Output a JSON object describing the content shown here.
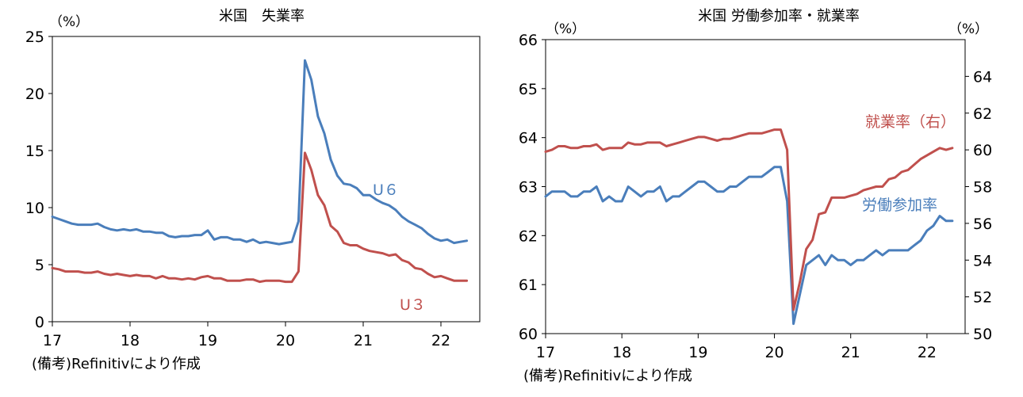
{
  "chart_data": [
    {
      "type": "line",
      "title": "米国　失業率",
      "unit_left": "（%）",
      "note": "(備考)Refinitivにより作成",
      "ylim": [
        0,
        25
      ],
      "yticks": [
        0,
        5,
        10,
        15,
        20,
        25
      ],
      "x_range": [
        17.0,
        22.5
      ],
      "xticks": [
        17,
        18,
        19,
        20,
        21,
        22
      ],
      "xtick_labels": [
        "17",
        "18",
        "19",
        "20",
        "21",
        "22"
      ],
      "series": [
        {
          "name": "U６",
          "label": "U６",
          "color": "#4a7ebb",
          "x": [
            17.0,
            17.083,
            17.167,
            17.25,
            17.333,
            17.417,
            17.5,
            17.583,
            17.667,
            17.75,
            17.833,
            17.917,
            18.0,
            18.083,
            18.167,
            18.25,
            18.333,
            18.417,
            18.5,
            18.583,
            18.667,
            18.75,
            18.833,
            18.917,
            19.0,
            19.083,
            19.167,
            19.25,
            19.333,
            19.417,
            19.5,
            19.583,
            19.667,
            19.75,
            19.833,
            19.917,
            20.0,
            20.083,
            20.167,
            20.25,
            20.333,
            20.417,
            20.5,
            20.583,
            20.667,
            20.75,
            20.833,
            20.917,
            21.0,
            21.083,
            21.167,
            21.25,
            21.333,
            21.417,
            21.5,
            21.583,
            21.667,
            21.75,
            21.833,
            21.917,
            22.0,
            22.083,
            22.167,
            22.25,
            22.333
          ],
          "values": [
            9.2,
            9.0,
            8.8,
            8.6,
            8.5,
            8.5,
            8.5,
            8.6,
            8.3,
            8.1,
            8.0,
            8.1,
            8.0,
            8.1,
            7.9,
            7.9,
            7.8,
            7.8,
            7.5,
            7.4,
            7.5,
            7.5,
            7.6,
            7.6,
            8.0,
            7.2,
            7.4,
            7.4,
            7.2,
            7.2,
            7.0,
            7.2,
            6.9,
            7.0,
            6.9,
            6.8,
            6.9,
            7.0,
            8.8,
            22.9,
            21.2,
            18.0,
            16.5,
            14.2,
            12.8,
            12.1,
            12.0,
            11.7,
            11.1,
            11.1,
            10.7,
            10.4,
            10.2,
            9.8,
            9.2,
            8.8,
            8.5,
            8.2,
            7.7,
            7.3,
            7.1,
            7.2,
            6.9,
            7.0,
            7.1
          ]
        },
        {
          "name": "U３",
          "label": "U３",
          "color": "#c0504d",
          "x": [
            17.0,
            17.083,
            17.167,
            17.25,
            17.333,
            17.417,
            17.5,
            17.583,
            17.667,
            17.75,
            17.833,
            17.917,
            18.0,
            18.083,
            18.167,
            18.25,
            18.333,
            18.417,
            18.5,
            18.583,
            18.667,
            18.75,
            18.833,
            18.917,
            19.0,
            19.083,
            19.167,
            19.25,
            19.333,
            19.417,
            19.5,
            19.583,
            19.667,
            19.75,
            19.833,
            19.917,
            20.0,
            20.083,
            20.167,
            20.25,
            20.333,
            20.417,
            20.5,
            20.583,
            20.667,
            20.75,
            20.833,
            20.917,
            21.0,
            21.083,
            21.167,
            21.25,
            21.333,
            21.417,
            21.5,
            21.583,
            21.667,
            21.75,
            21.833,
            21.917,
            22.0,
            22.083,
            22.167,
            22.25,
            22.333
          ],
          "values": [
            4.7,
            4.6,
            4.4,
            4.4,
            4.4,
            4.3,
            4.3,
            4.4,
            4.2,
            4.1,
            4.2,
            4.1,
            4.0,
            4.1,
            4.0,
            4.0,
            3.8,
            4.0,
            3.8,
            3.8,
            3.7,
            3.8,
            3.7,
            3.9,
            4.0,
            3.8,
            3.8,
            3.6,
            3.6,
            3.6,
            3.7,
            3.7,
            3.5,
            3.6,
            3.6,
            3.6,
            3.5,
            3.5,
            4.4,
            14.8,
            13.3,
            11.1,
            10.2,
            8.4,
            7.9,
            6.9,
            6.7,
            6.7,
            6.4,
            6.2,
            6.1,
            6.0,
            5.8,
            5.9,
            5.4,
            5.2,
            4.7,
            4.6,
            4.2,
            3.9,
            4.0,
            3.8,
            3.6,
            3.6,
            3.6
          ]
        }
      ]
    },
    {
      "type": "line",
      "title": "米国 労働参加率・就業率",
      "unit_left": "（%）",
      "unit_right": "（%）",
      "note": "(備考)Refinitivにより作成",
      "ylim": [
        60,
        66
      ],
      "yticks": [
        60,
        61,
        62,
        63,
        64,
        65,
        66
      ],
      "ylim_right": [
        50,
        66
      ],
      "yticks_right": [
        50,
        52,
        54,
        56,
        58,
        60,
        62,
        64
      ],
      "x_range": [
        17.0,
        22.5
      ],
      "xticks": [
        17,
        18,
        19,
        20,
        21,
        22
      ],
      "xtick_labels": [
        "17",
        "18",
        "19",
        "20",
        "21",
        "22"
      ],
      "series": [
        {
          "name": "労働参加率",
          "label": "労働参加率",
          "axis": "left",
          "color": "#4a7ebb",
          "x": [
            17.0,
            17.083,
            17.167,
            17.25,
            17.333,
            17.417,
            17.5,
            17.583,
            17.667,
            17.75,
            17.833,
            17.917,
            18.0,
            18.083,
            18.167,
            18.25,
            18.333,
            18.417,
            18.5,
            18.583,
            18.667,
            18.75,
            18.833,
            18.917,
            19.0,
            19.083,
            19.167,
            19.25,
            19.333,
            19.417,
            19.5,
            19.583,
            19.667,
            19.75,
            19.833,
            19.917,
            20.0,
            20.083,
            20.167,
            20.25,
            20.333,
            20.417,
            20.5,
            20.583,
            20.667,
            20.75,
            20.833,
            20.917,
            21.0,
            21.083,
            21.167,
            21.25,
            21.333,
            21.417,
            21.5,
            21.583,
            21.667,
            21.75,
            21.833,
            21.917,
            22.0,
            22.083,
            22.167,
            22.25,
            22.333
          ],
          "values": [
            62.8,
            62.9,
            62.9,
            62.9,
            62.8,
            62.8,
            62.9,
            62.9,
            63.0,
            62.7,
            62.8,
            62.7,
            62.7,
            63.0,
            62.9,
            62.8,
            62.9,
            62.9,
            63.0,
            62.7,
            62.8,
            62.8,
            62.9,
            63.0,
            63.1,
            63.1,
            63.0,
            62.9,
            62.9,
            63.0,
            63.0,
            63.1,
            63.2,
            63.2,
            63.2,
            63.3,
            63.4,
            63.4,
            62.7,
            60.2,
            60.8,
            61.4,
            61.5,
            61.6,
            61.4,
            61.6,
            61.5,
            61.5,
            61.4,
            61.5,
            61.5,
            61.6,
            61.7,
            61.6,
            61.7,
            61.7,
            61.7,
            61.7,
            61.8,
            61.9,
            62.1,
            62.2,
            62.4,
            62.3,
            62.3
          ]
        },
        {
          "name": "就業率（右）",
          "label": "就業率（右）",
          "axis": "right",
          "color": "#c0504d",
          "x": [
            17.0,
            17.083,
            17.167,
            17.25,
            17.333,
            17.417,
            17.5,
            17.583,
            17.667,
            17.75,
            17.833,
            17.917,
            18.0,
            18.083,
            18.167,
            18.25,
            18.333,
            18.417,
            18.5,
            18.583,
            18.667,
            18.75,
            18.833,
            18.917,
            19.0,
            19.083,
            19.167,
            19.25,
            19.333,
            19.417,
            19.5,
            19.583,
            19.667,
            19.75,
            19.833,
            19.917,
            20.0,
            20.083,
            20.167,
            20.25,
            20.333,
            20.417,
            20.5,
            20.583,
            20.667,
            20.75,
            20.833,
            20.917,
            21.0,
            21.083,
            21.167,
            21.25,
            21.333,
            21.417,
            21.5,
            21.583,
            21.667,
            21.75,
            21.833,
            21.917,
            22.0,
            22.083,
            22.167,
            22.25,
            22.333
          ],
          "values": [
            59.9,
            60.0,
            60.2,
            60.2,
            60.1,
            60.1,
            60.2,
            60.2,
            60.3,
            60.0,
            60.1,
            60.1,
            60.1,
            60.4,
            60.3,
            60.3,
            60.4,
            60.4,
            60.4,
            60.2,
            60.3,
            60.4,
            60.5,
            60.6,
            60.7,
            60.7,
            60.6,
            60.5,
            60.6,
            60.6,
            60.7,
            60.8,
            60.9,
            60.9,
            60.9,
            61.0,
            61.1,
            61.1,
            60.0,
            51.3,
            52.8,
            54.6,
            55.1,
            56.5,
            56.6,
            57.4,
            57.4,
            57.4,
            57.5,
            57.6,
            57.8,
            57.9,
            58.0,
            58.0,
            58.4,
            58.5,
            58.8,
            58.9,
            59.2,
            59.5,
            59.7,
            59.9,
            60.1,
            60.0,
            60.1
          ]
        }
      ]
    }
  ]
}
